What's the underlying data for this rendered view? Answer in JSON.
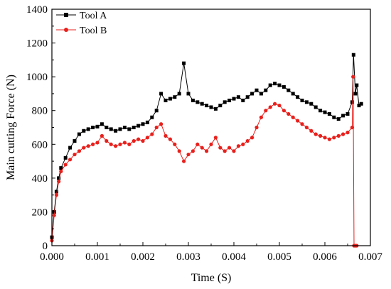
{
  "chart_data": {
    "type": "line",
    "xlabel": "Time  (S)",
    "ylabel": "Main cutting Force  (N)",
    "xlim": [
      0,
      0.007
    ],
    "ylim": [
      0,
      1400
    ],
    "x_ticks": [
      "0.000",
      "0.001",
      "0.002",
      "0.003",
      "0.004",
      "0.005",
      "0.006",
      "0.007"
    ],
    "y_ticks": [
      "0",
      "200",
      "400",
      "600",
      "800",
      "1000",
      "1200",
      "1400"
    ],
    "legend_position": "top-left",
    "series": [
      {
        "name": "Tool A",
        "color": "#000000",
        "marker": "square",
        "points": [
          [
            0.0,
            50
          ],
          [
            5e-05,
            200
          ],
          [
            0.0001,
            320
          ],
          [
            0.00015,
            400
          ],
          [
            0.0002,
            460
          ],
          [
            0.0003,
            520
          ],
          [
            0.0004,
            580
          ],
          [
            0.0005,
            620
          ],
          [
            0.0006,
            660
          ],
          [
            0.0007,
            680
          ],
          [
            0.0008,
            690
          ],
          [
            0.0009,
            700
          ],
          [
            0.001,
            705
          ],
          [
            0.0011,
            720
          ],
          [
            0.0012,
            700
          ],
          [
            0.0013,
            690
          ],
          [
            0.0014,
            680
          ],
          [
            0.0015,
            690
          ],
          [
            0.0016,
            700
          ],
          [
            0.0017,
            690
          ],
          [
            0.0018,
            700
          ],
          [
            0.0019,
            710
          ],
          [
            0.002,
            720
          ],
          [
            0.0021,
            730
          ],
          [
            0.0022,
            760
          ],
          [
            0.0023,
            800
          ],
          [
            0.0024,
            900
          ],
          [
            0.0025,
            860
          ],
          [
            0.0026,
            870
          ],
          [
            0.0027,
            880
          ],
          [
            0.0028,
            900
          ],
          [
            0.0029,
            1080
          ],
          [
            0.003,
            900
          ],
          [
            0.0031,
            860
          ],
          [
            0.0032,
            850
          ],
          [
            0.0033,
            840
          ],
          [
            0.0034,
            830
          ],
          [
            0.0035,
            820
          ],
          [
            0.0036,
            810
          ],
          [
            0.0037,
            830
          ],
          [
            0.0038,
            850
          ],
          [
            0.0039,
            860
          ],
          [
            0.004,
            870
          ],
          [
            0.0041,
            880
          ],
          [
            0.0042,
            860
          ],
          [
            0.0043,
            880
          ],
          [
            0.0044,
            900
          ],
          [
            0.0045,
            920
          ],
          [
            0.0046,
            900
          ],
          [
            0.0047,
            920
          ],
          [
            0.0048,
            950
          ],
          [
            0.0049,
            960
          ],
          [
            0.005,
            950
          ],
          [
            0.0051,
            940
          ],
          [
            0.0052,
            920
          ],
          [
            0.0053,
            900
          ],
          [
            0.0054,
            880
          ],
          [
            0.0055,
            860
          ],
          [
            0.0056,
            850
          ],
          [
            0.0057,
            840
          ],
          [
            0.0058,
            820
          ],
          [
            0.0059,
            800
          ],
          [
            0.006,
            790
          ],
          [
            0.0061,
            780
          ],
          [
            0.0062,
            760
          ],
          [
            0.0063,
            750
          ],
          [
            0.0064,
            770
          ],
          [
            0.0065,
            780
          ],
          [
            0.0066,
            850
          ],
          [
            0.00663,
            1130
          ],
          [
            0.00667,
            900
          ],
          [
            0.0067,
            950
          ],
          [
            0.00675,
            830
          ],
          [
            0.0068,
            840
          ]
        ]
      },
      {
        "name": "Tool B",
        "color": "#e8201c",
        "marker": "circle",
        "points": [
          [
            0.0,
            30
          ],
          [
            5e-05,
            180
          ],
          [
            0.0001,
            300
          ],
          [
            0.00015,
            380
          ],
          [
            0.0002,
            440
          ],
          [
            0.0003,
            480
          ],
          [
            0.0004,
            510
          ],
          [
            0.0005,
            540
          ],
          [
            0.0006,
            560
          ],
          [
            0.0007,
            580
          ],
          [
            0.0008,
            590
          ],
          [
            0.0009,
            600
          ],
          [
            0.001,
            610
          ],
          [
            0.0011,
            650
          ],
          [
            0.0012,
            620
          ],
          [
            0.0013,
            600
          ],
          [
            0.0014,
            590
          ],
          [
            0.0015,
            600
          ],
          [
            0.0016,
            610
          ],
          [
            0.0017,
            600
          ],
          [
            0.0018,
            620
          ],
          [
            0.0019,
            630
          ],
          [
            0.002,
            620
          ],
          [
            0.0021,
            640
          ],
          [
            0.0022,
            660
          ],
          [
            0.0023,
            700
          ],
          [
            0.0024,
            720
          ],
          [
            0.0025,
            650
          ],
          [
            0.0026,
            630
          ],
          [
            0.0027,
            600
          ],
          [
            0.0028,
            560
          ],
          [
            0.0029,
            500
          ],
          [
            0.003,
            540
          ],
          [
            0.0031,
            560
          ],
          [
            0.0032,
            600
          ],
          [
            0.0033,
            580
          ],
          [
            0.0034,
            560
          ],
          [
            0.0035,
            600
          ],
          [
            0.0036,
            640
          ],
          [
            0.0037,
            580
          ],
          [
            0.0038,
            560
          ],
          [
            0.0039,
            580
          ],
          [
            0.004,
            560
          ],
          [
            0.0041,
            590
          ],
          [
            0.0042,
            600
          ],
          [
            0.0043,
            620
          ],
          [
            0.0044,
            640
          ],
          [
            0.0045,
            700
          ],
          [
            0.0046,
            760
          ],
          [
            0.0047,
            800
          ],
          [
            0.0048,
            820
          ],
          [
            0.0049,
            840
          ],
          [
            0.005,
            830
          ],
          [
            0.0051,
            800
          ],
          [
            0.0052,
            780
          ],
          [
            0.0053,
            760
          ],
          [
            0.0054,
            740
          ],
          [
            0.0055,
            720
          ],
          [
            0.0056,
            700
          ],
          [
            0.0057,
            680
          ],
          [
            0.0058,
            660
          ],
          [
            0.0059,
            650
          ],
          [
            0.006,
            640
          ],
          [
            0.0061,
            630
          ],
          [
            0.0062,
            640
          ],
          [
            0.0063,
            650
          ],
          [
            0.0064,
            660
          ],
          [
            0.0065,
            670
          ],
          [
            0.0066,
            700
          ],
          [
            0.00662,
            1000
          ],
          [
            0.00664,
            0
          ],
          [
            0.00666,
            0
          ],
          [
            0.00668,
            0
          ],
          [
            0.0067,
            0
          ]
        ]
      }
    ]
  }
}
